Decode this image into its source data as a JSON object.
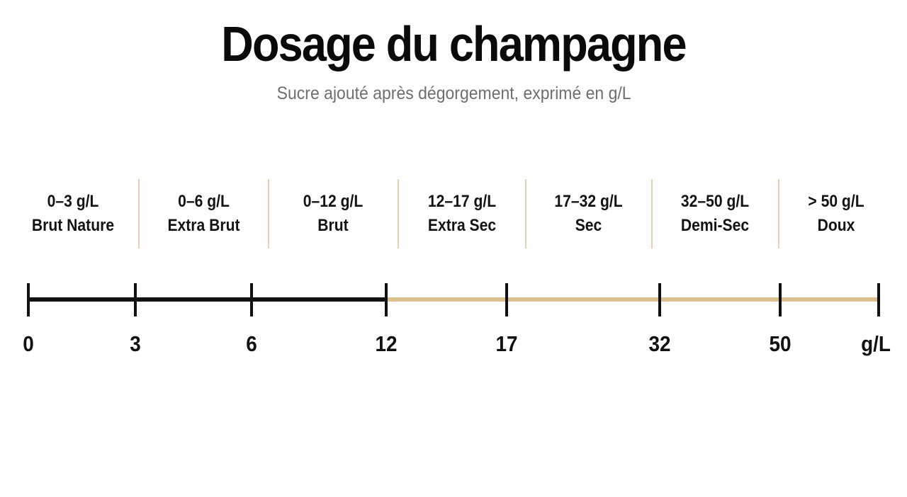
{
  "header": {
    "title": "Dosage du champagne",
    "subtitle": "Sucre ajouté après dégorgement, exprimé en g/L"
  },
  "categories": [
    {
      "range": "0–3 g/L",
      "name": "Brut Nature"
    },
    {
      "range": "0–6 g/L",
      "name": "Extra Brut"
    },
    {
      "range": "0–12 g/L",
      "name": "Brut"
    },
    {
      "range": "12–17 g/L",
      "name": "Extra Sec"
    },
    {
      "range": "17–32 g/L",
      "name": "Sec"
    },
    {
      "range": "32–50 g/L",
      "name": "Demi-Sec"
    },
    {
      "range": "> 50 g/L",
      "name": "Doux"
    }
  ],
  "axis": {
    "ticks": [
      "0",
      "3",
      "6",
      "12",
      "17",
      "32",
      "50"
    ],
    "unit_label": "g/L",
    "dark_color": "#111111",
    "light_color": "#dcc08e"
  }
}
